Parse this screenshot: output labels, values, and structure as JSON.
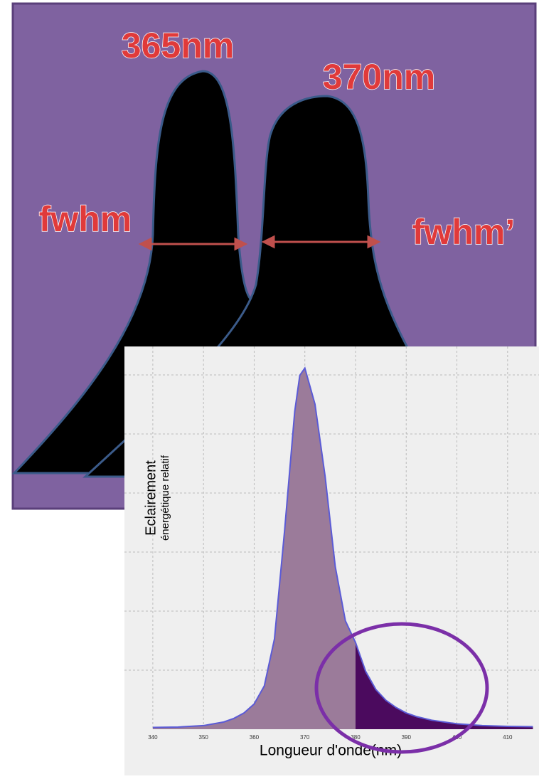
{
  "diagram": {
    "peak_labels": [
      "365nm",
      "370nm"
    ],
    "width_labels": [
      "fwhm",
      "fwhm’"
    ]
  },
  "chart_data": {
    "type": "area",
    "ylabel": [
      "Eclairement",
      "énergétique relatif"
    ],
    "xlabel": "Longueur d'onde(nm)",
    "x": [
      340,
      345,
      350,
      354,
      356,
      358,
      360,
      362,
      364,
      366,
      368,
      369,
      370,
      372,
      374,
      376,
      378,
      380,
      382,
      384,
      386,
      388,
      390,
      392,
      395,
      400,
      405,
      410,
      415
    ],
    "values": [
      0.005,
      0.006,
      0.01,
      0.02,
      0.03,
      0.045,
      0.07,
      0.12,
      0.25,
      0.55,
      0.88,
      0.98,
      1.0,
      0.9,
      0.7,
      0.45,
      0.3,
      0.24,
      0.16,
      0.11,
      0.08,
      0.06,
      0.045,
      0.035,
      0.025,
      0.015,
      0.01,
      0.008,
      0.007
    ],
    "color": "#9b7b9a",
    "line_color": "#5b5bd6",
    "highlight_from": 380,
    "highlight_color": "#4b0a5e",
    "xlim": [
      334.4,
      416.2
    ],
    "ylim": [
      0,
      1.06
    ],
    "xticks": [
      340,
      350,
      360,
      370,
      380,
      390,
      400,
      410
    ],
    "grid": true
  }
}
